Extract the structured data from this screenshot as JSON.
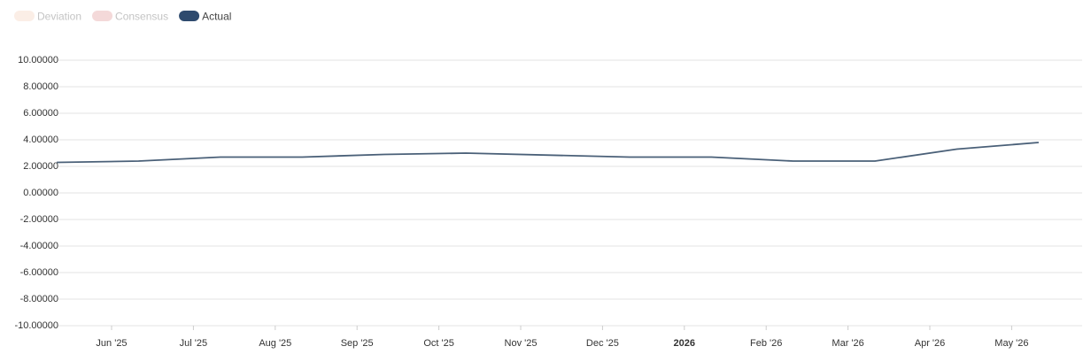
{
  "chart_data": {
    "type": "line",
    "hidden_series": [
      {
        "name": "Deviation",
        "color": "#fbeee6"
      },
      {
        "name": "Consensus",
        "color": "#f4d9d9"
      }
    ],
    "x": [
      "2025-05",
      "2025-06",
      "2025-07",
      "2025-08",
      "2025-09",
      "2025-10",
      "2025-12",
      "2026-01",
      "2026-02",
      "2026-03",
      "2026-04",
      "2026-05"
    ],
    "series": [
      {
        "name": "Actual",
        "color": "#2e4a6e",
        "line_color": "#4a6078",
        "values": [
          2.3,
          2.4,
          2.7,
          2.7,
          2.9,
          3.0,
          2.7,
          2.7,
          2.4,
          2.4,
          3.3,
          3.8
        ]
      }
    ],
    "ylim": [
      -10,
      10
    ],
    "yticks": [
      {
        "value": 10,
        "label": "10.00000"
      },
      {
        "value": 8,
        "label": "8.00000"
      },
      {
        "value": 6,
        "label": "6.00000"
      },
      {
        "value": 4,
        "label": "4.00000"
      },
      {
        "value": 2,
        "label": "2.00000"
      },
      {
        "value": 0,
        "label": "0.00000"
      },
      {
        "value": -2,
        "label": "-2.00000"
      },
      {
        "value": -4,
        "label": "-4.00000"
      },
      {
        "value": -6,
        "label": "-6.00000"
      },
      {
        "value": -8,
        "label": "-8.00000"
      },
      {
        "value": -10,
        "label": "-10.00000"
      }
    ],
    "xticks": [
      {
        "value": "2025-06",
        "label": "Jun '25"
      },
      {
        "value": "2025-07",
        "label": "Jul '25"
      },
      {
        "value": "2025-08",
        "label": "Aug '25"
      },
      {
        "value": "2025-09",
        "label": "Sep '25"
      },
      {
        "value": "2025-10",
        "label": "Oct '25"
      },
      {
        "value": "2025-11",
        "label": "Nov '25"
      },
      {
        "value": "2025-12",
        "label": "Dec '25"
      },
      {
        "value": "2026-01",
        "label": "2026",
        "bold": true
      },
      {
        "value": "2026-02",
        "label": "Feb '26"
      },
      {
        "value": "2026-03",
        "label": "Mar '26"
      },
      {
        "value": "2026-04",
        "label": "Apr '26"
      },
      {
        "value": "2026-05",
        "label": "May '26"
      }
    ],
    "grid": true
  }
}
